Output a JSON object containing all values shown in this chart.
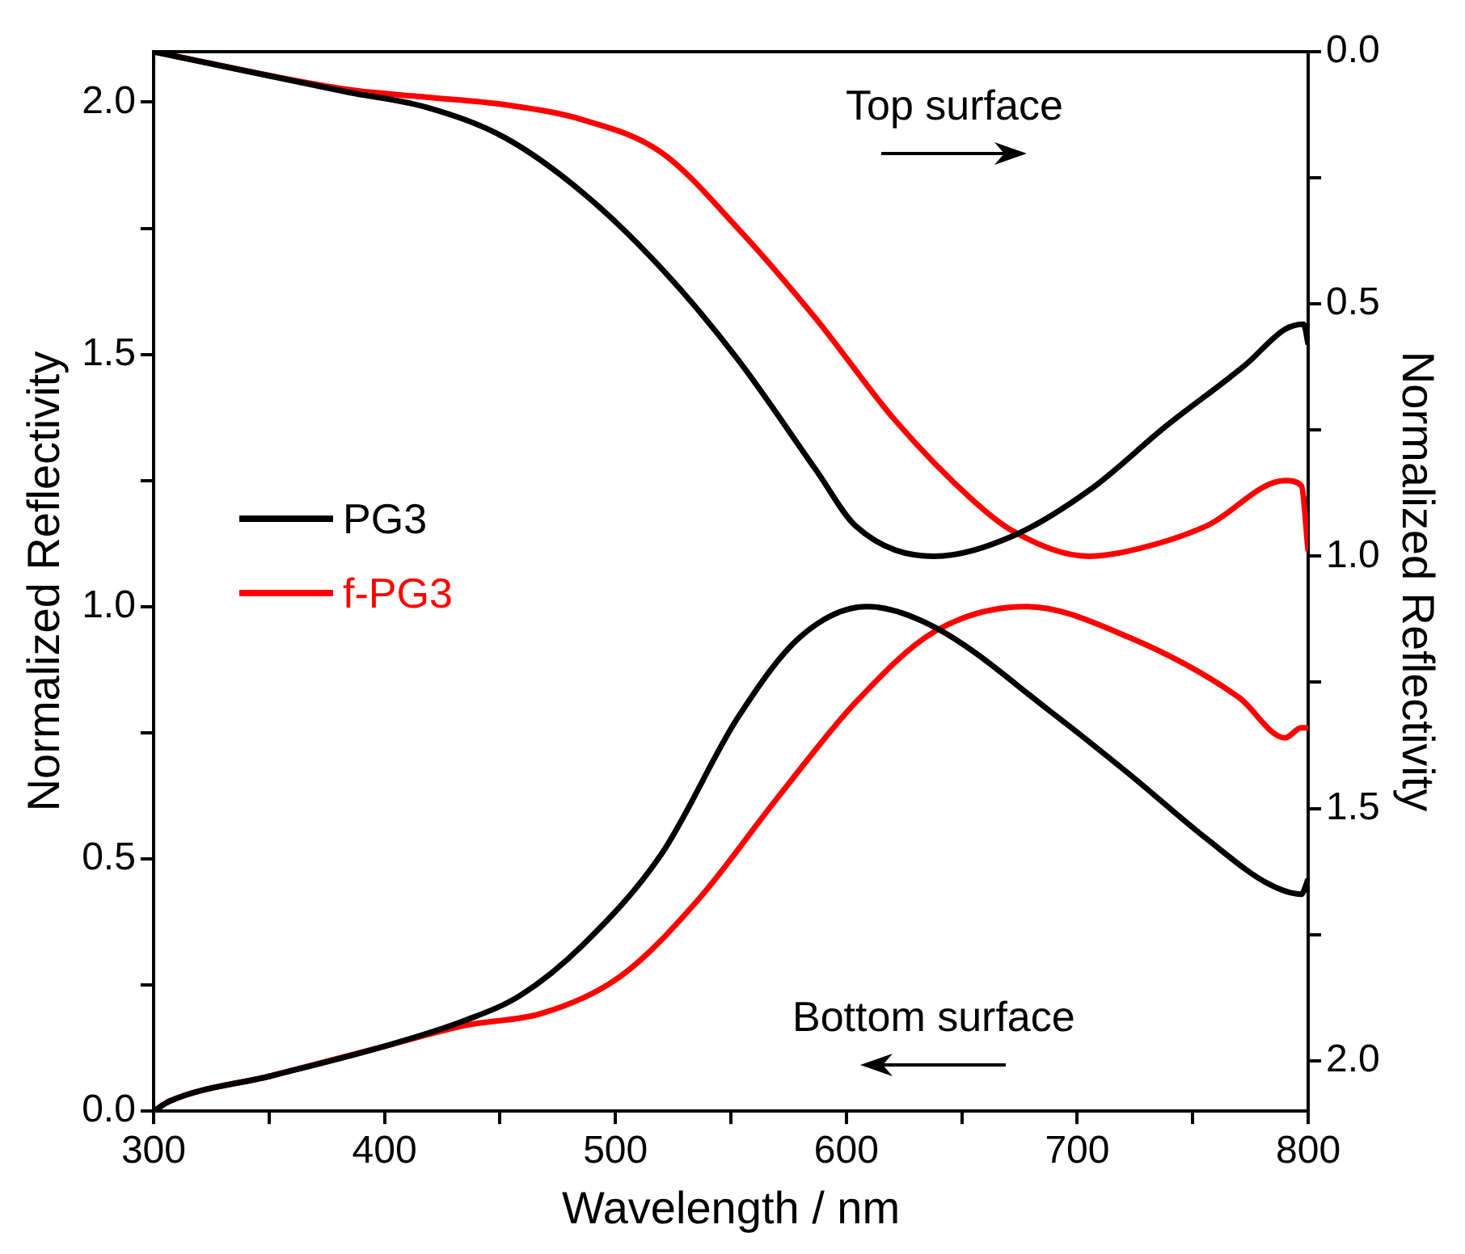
{
  "chart_data": {
    "type": "line",
    "xlabel": "Wavelength / nm",
    "ylabel": "Normalized Reflectivity",
    "y2label": "Normalized Reflectivity",
    "annotations": [
      "Top surface",
      "Bottom surface"
    ],
    "xlim": [
      300,
      800
    ],
    "xticks": [
      300,
      {
        "value": 350,
        "label": null
      },
      400,
      {
        "value": 450,
        "label": null
      },
      500,
      {
        "value": 550,
        "label": null
      },
      600,
      {
        "value": 650,
        "label": null
      },
      700,
      {
        "value": 750,
        "label": null
      },
      800
    ],
    "ylim": [
      0,
      2.1
    ],
    "yticks": [
      {
        "value": 0,
        "label": "0.0"
      },
      {
        "value": 0.25,
        "label": null
      },
      0.5,
      {
        "value": 0.75,
        "label": null
      },
      {
        "value": 1,
        "label": "1.0"
      },
      {
        "value": 1.25,
        "label": null
      },
      1.5,
      {
        "value": 1.75,
        "label": null
      },
      {
        "value": 2,
        "label": "2.0"
      }
    ],
    "y2lim": [
      2.1,
      0
    ],
    "y2ticks": [
      {
        "value": 0,
        "label": "0.0"
      },
      {
        "value": 0.25,
        "label": null
      },
      0.5,
      {
        "value": 0.75,
        "label": null
      },
      {
        "value": 1,
        "label": "1.0"
      },
      {
        "value": 1.25,
        "label": null
      },
      1.5,
      {
        "value": 1.75,
        "label": null
      },
      {
        "value": 2,
        "label": "2.0"
      }
    ],
    "grid": false,
    "legend": "left",
    "marker": "none",
    "line_style": "solid",
    "series": [
      {
        "name": "PG3",
        "color": "#000000",
        "x": [
          300,
          307,
          351,
          401,
          435,
          459,
          486,
          520,
          553,
          580,
          609,
          638,
          689,
          722,
          756,
          783,
          797,
          800
        ],
        "values": [
          0,
          0.02,
          0.07,
          0.13,
          0.18,
          0.23,
          0.33,
          0.51,
          0.78,
          0.94,
          1.0,
          0.96,
          0.79,
          0.67,
          0.54,
          0.45,
          0.43,
          0.46
        ]
      },
      {
        "name": "f-PG3",
        "color": "#ff0000",
        "x": [
          300,
          307,
          351,
          401,
          435,
          469,
          503,
          536,
          570,
          604,
          638,
          678,
          722,
          770,
          790,
          797,
          800
        ],
        "values": [
          0,
          0.02,
          0.07,
          0.13,
          0.17,
          0.195,
          0.27,
          0.42,
          0.62,
          0.81,
          0.95,
          1.0,
          0.94,
          0.82,
          0.74,
          0.76,
          0.76
        ]
      },
      {
        "color": "#000000",
        "axis": "y2",
        "x": [
          300,
          384,
          418,
          452,
          486,
          520,
          553,
          587,
          604,
          638,
          672,
          705,
          739,
          773,
          790,
          798,
          800
        ],
        "values": [
          0,
          0.08,
          0.11,
          0.17,
          0.28,
          0.43,
          0.61,
          0.83,
          0.94,
          1.0,
          0.96,
          0.87,
          0.74,
          0.62,
          0.55,
          0.54,
          0.58
        ]
      },
      {
        "color": "#ff0000",
        "axis": "y2",
        "x": [
          300,
          384,
          418,
          452,
          486,
          520,
          553,
          587,
          621,
          655,
          672,
          705,
          722,
          756,
          790,
          797,
          800
        ],
        "values": [
          0,
          0.075,
          0.09,
          0.105,
          0.135,
          0.2,
          0.35,
          0.53,
          0.73,
          0.89,
          0.95,
          1.0,
          0.99,
          0.94,
          0.85,
          0.86,
          0.99
        ]
      }
    ]
  }
}
